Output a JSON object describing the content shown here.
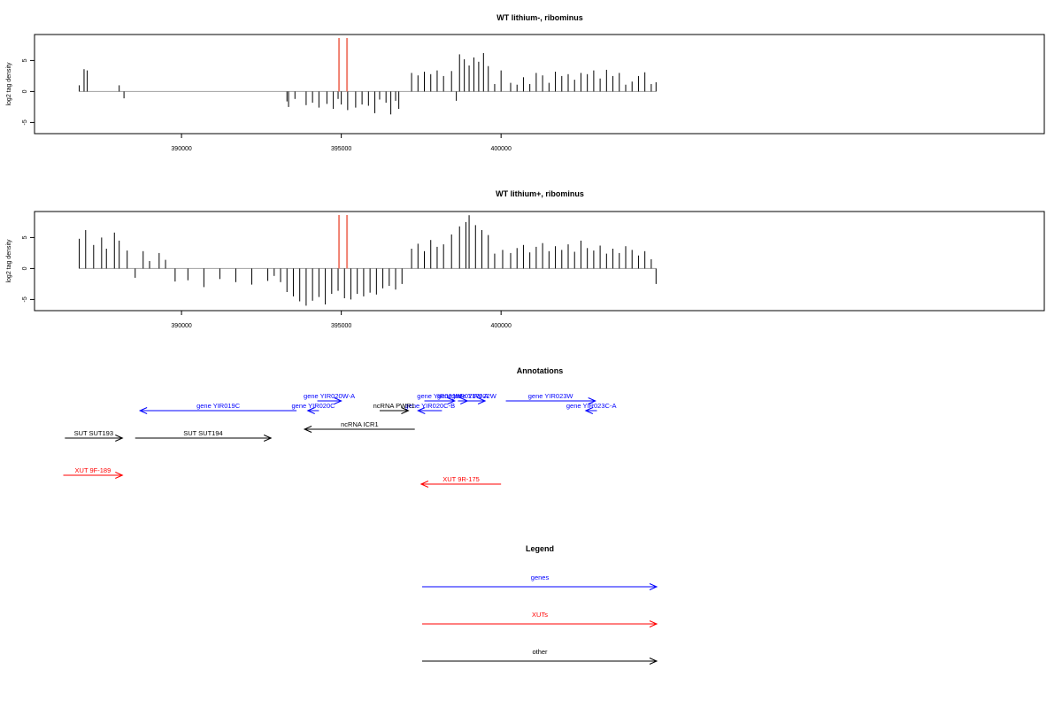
{
  "colors": {
    "gene": "#0000ff",
    "xut": "#ff0000",
    "other": "#000000",
    "marker": "#f08070",
    "axis": "#000000",
    "baseline": "#a0a0a0"
  },
  "chart_data": [
    {
      "type": "bar",
      "title": "WT lithium-, ribominus",
      "ylabel": "log2 tag density",
      "xlim": [
        385400,
        417000
      ],
      "ylim": [
        -6.8,
        9.2
      ],
      "yticks": [
        -5,
        0,
        5
      ],
      "xticks": [
        390000,
        395000,
        400000
      ],
      "marker_lines": [
        394930,
        395180
      ],
      "series": [
        {
          "x": [
            386800,
            386950,
            387050,
            388050,
            388200
          ],
          "values": [
            1.0,
            3.6,
            3.4,
            1.0,
            -1.1
          ]
        },
        {
          "x": [
            393300,
            393350,
            393550,
            393900,
            394100,
            394300,
            394550,
            394750,
            394900,
            395000,
            395200,
            395450,
            395650,
            395850,
            396050,
            396200,
            396400,
            396550,
            396700,
            396800
          ],
          "values": [
            -1.6,
            -2.5,
            -1.2,
            -2.2,
            -1.8,
            -2.6,
            -2.0,
            -2.8,
            -1.2,
            -2.1,
            -3.0,
            -2.6,
            -2.1,
            -2.3,
            -3.5,
            -1.3,
            -1.8,
            -3.7,
            -1.5,
            -2.8
          ]
        },
        {
          "x": [
            397200,
            397400,
            397600,
            397800,
            398000,
            398200,
            398450,
            398600,
            398700,
            398850,
            399000,
            399150,
            399300,
            399450,
            399600,
            399800,
            400000,
            400300,
            400500,
            400700,
            400900,
            401100,
            401300,
            401500,
            401700,
            401900,
            402100,
            402300,
            402500,
            402700,
            402900,
            403100,
            403300,
            403500,
            403700,
            403900,
            404100,
            404300,
            404500,
            404700,
            404850
          ],
          "values": [
            3.0,
            2.6,
            3.2,
            2.8,
            3.4,
            2.5,
            3.3,
            -1.5,
            6.0,
            5.2,
            4.2,
            5.5,
            4.8,
            6.2,
            4.1,
            1.2,
            3.4,
            1.4,
            1.1,
            2.3,
            1.2,
            3.0,
            2.6,
            1.4,
            3.2,
            2.5,
            2.8,
            1.9,
            3.0,
            2.8,
            3.4,
            2.1,
            3.5,
            2.5,
            3.0,
            1.1,
            1.6,
            2.5,
            3.1,
            1.2,
            1.5
          ]
        }
      ]
    },
    {
      "type": "bar",
      "title": "WT lithium+, ribominus",
      "ylabel": "log2 tag density",
      "xlim": [
        385400,
        417000
      ],
      "ylim": [
        -6.8,
        9.2
      ],
      "yticks": [
        -5,
        0,
        5
      ],
      "xticks": [
        390000,
        395000,
        400000
      ],
      "marker_lines": [
        394930,
        395180
      ],
      "series": [
        {
          "x": [
            386800,
            387000,
            387250,
            387500,
            387650,
            387900,
            388050,
            388300,
            388550,
            388800,
            389000,
            389300,
            389500,
            389800,
            390200,
            390700,
            391200,
            391700,
            392200,
            392700
          ],
          "values": [
            4.8,
            6.2,
            3.8,
            5.0,
            3.2,
            5.8,
            4.5,
            2.9,
            -1.5,
            2.8,
            1.2,
            2.5,
            1.4,
            -2.1,
            -1.9,
            -3.0,
            -1.7,
            -2.2,
            -2.6,
            -2.0
          ]
        },
        {
          "x": [
            392900,
            393100,
            393300,
            393500,
            393700,
            393900,
            394100,
            394300,
            394500,
            394700,
            394900,
            395100,
            395300,
            395500,
            395700,
            395900,
            396100,
            396300,
            396500,
            396700,
            396900
          ],
          "values": [
            -1.2,
            -2.2,
            -3.8,
            -4.5,
            -5.3,
            -6.0,
            -5.2,
            -4.6,
            -5.8,
            -4.1,
            -3.6,
            -4.8,
            -5.0,
            -4.1,
            -4.5,
            -3.9,
            -4.2,
            -3.2,
            -2.8,
            -3.4,
            -2.5
          ]
        },
        {
          "x": [
            397200,
            397400,
            397600,
            397800,
            398000,
            398200,
            398450,
            398700,
            398900,
            399000,
            399200,
            399400,
            399600,
            399800,
            400050,
            400300,
            400500,
            400700,
            400900,
            401100,
            401300,
            401500,
            401700,
            401900,
            402100,
            402300,
            402500,
            402700,
            402900,
            403100,
            403300,
            403500,
            403700,
            403900,
            404100,
            404300,
            404500,
            404700,
            404850
          ],
          "values": [
            3.2,
            4.0,
            2.8,
            4.6,
            3.5,
            3.9,
            5.5,
            6.8,
            7.5,
            8.6,
            7.0,
            6.2,
            5.4,
            2.4,
            3.0,
            2.5,
            3.3,
            3.8,
            2.6,
            3.5,
            4.1,
            2.8,
            3.6,
            3.0,
            3.9,
            2.7,
            4.5,
            3.3,
            2.9,
            3.7,
            2.4,
            3.2,
            2.5,
            3.6,
            3.0,
            2.1,
            2.8,
            1.5,
            -2.5
          ]
        }
      ]
    }
  ],
  "annotations": {
    "title": "Annotations",
    "features": [
      {
        "label": "gene YIR020W-A",
        "type": "gene",
        "start": 394250,
        "end": 395000,
        "row": 1
      },
      {
        "label": "gene YIR019C",
        "type": "gene",
        "start": 393600,
        "end": 388700,
        "row": 2
      },
      {
        "label": "gene YIR020C",
        "type": "gene",
        "start": 394300,
        "end": 393950,
        "row": 2
      },
      {
        "label": "gene YIR021W",
        "type": "gene",
        "start": 397600,
        "end": 398550,
        "row": 1
      },
      {
        "label": "gene YIR021W-A",
        "type": "gene",
        "start": 398650,
        "end": 398950,
        "row": 1
      },
      {
        "label": "gene YIR022W",
        "type": "gene",
        "start": 398800,
        "end": 399500,
        "row": 1
      },
      {
        "label": "gene YIR020C-B",
        "type": "gene",
        "start": 398150,
        "end": 397400,
        "row": 2
      },
      {
        "label": "gene YIR023W",
        "type": "gene",
        "start": 400150,
        "end": 402950,
        "row": 1
      },
      {
        "label": "gene YIR023C-A",
        "type": "gene",
        "start": 403000,
        "end": 402650,
        "row": 2
      },
      {
        "label": "ncRNA PWR1",
        "type": "other",
        "start": 396200,
        "end": 397100,
        "row": 2
      },
      {
        "label": "ncRNA ICR1",
        "type": "other",
        "start": 397300,
        "end": 393850,
        "row": 3
      },
      {
        "label": "SUT SUT193",
        "type": "other",
        "start": 386350,
        "end": 388150,
        "row": 4
      },
      {
        "label": "SUT SUT194",
        "type": "other",
        "start": 388550,
        "end": 392800,
        "row": 4
      },
      {
        "label": "XUT 9F-189",
        "type": "xut",
        "start": 386300,
        "end": 388150,
        "row": 5
      },
      {
        "label": "XUT 9R-175",
        "type": "xut",
        "start": 400000,
        "end": 397500,
        "row": 6
      }
    ]
  },
  "legend": {
    "title": "Legend",
    "items": [
      {
        "label": "genes",
        "type": "gene"
      },
      {
        "label": "XUTs",
        "type": "xut"
      },
      {
        "label": "other",
        "type": "other"
      }
    ]
  }
}
